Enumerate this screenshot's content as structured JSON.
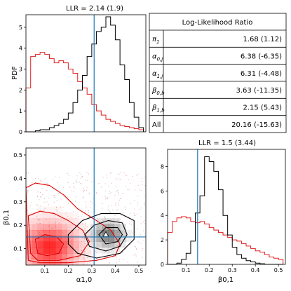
{
  "chart_data": [
    {
      "type": "histogram",
      "title": "LLR = 2.14 (1.9)",
      "ylabel": "PDF",
      "xlim": [
        0.02,
        0.53
      ],
      "ylim": [
        0,
        5.6
      ],
      "yticks": [
        0,
        1,
        2,
        3,
        4,
        5
      ],
      "vline": 0.31,
      "bins": [
        0.02,
        0.04,
        0.06,
        0.08,
        0.1,
        0.12,
        0.14,
        0.16,
        0.18,
        0.2,
        0.22,
        0.24,
        0.26,
        0.28,
        0.3,
        0.32,
        0.34,
        0.36,
        0.38,
        0.4,
        0.42,
        0.44,
        0.46,
        0.48,
        0.5,
        0.52
      ],
      "series": [
        {
          "color": "#e02020",
          "values": [
            2.1,
            3.6,
            3.7,
            3.8,
            3.7,
            3.5,
            3.3,
            3.4,
            3.3,
            3.0,
            2.8,
            2.4,
            2.1,
            1.8,
            1.3,
            1.0,
            0.8,
            0.6,
            0.5,
            0.4,
            0.3,
            0.25,
            0.2,
            0.15,
            0.1
          ]
        },
        {
          "color": "#000000",
          "values": [
            0.0,
            0.0,
            0.05,
            0.1,
            0.1,
            0.2,
            0.3,
            0.4,
            0.6,
            0.9,
            1.4,
            2.0,
            2.7,
            3.6,
            4.2,
            4.8,
            5.0,
            5.5,
            5.1,
            4.4,
            3.2,
            2.5,
            1.4,
            0.7,
            0.2
          ]
        }
      ]
    },
    {
      "type": "table",
      "header": "Log-Likelihood Ratio",
      "rows": [
        {
          "label": "π1",
          "value": "1.68 (1.12)"
        },
        {
          "label": "α0,j",
          "value": "6.38 (-6.35)"
        },
        {
          "label": "α1,j",
          "value": "6.31 (-4.48)"
        },
        {
          "label": "β0,b",
          "value": "3.63 (-11.35)"
        },
        {
          "label": "β1,b",
          "value": "2.15 (5.43)"
        },
        {
          "label": "All",
          "value": "20.16 (-15.63)"
        }
      ]
    },
    {
      "type": "heatmap",
      "xlabel": "α1,0",
      "ylabel": "β0,1",
      "xlim": [
        0.02,
        0.53
      ],
      "ylim": [
        0.03,
        0.53
      ],
      "xticks": [
        0.1,
        0.2,
        0.3,
        0.4,
        0.5
      ],
      "yticks": [
        0.1,
        0.2,
        0.3,
        0.4,
        0.5
      ],
      "vline": 0.31,
      "hline": 0.15,
      "red_contours": [
        {
          "level": "outer",
          "points": [
            [
              0.02,
              0.36
            ],
            [
              0.06,
              0.38
            ],
            [
              0.12,
              0.37
            ],
            [
              0.18,
              0.33
            ],
            [
              0.24,
              0.27
            ],
            [
              0.32,
              0.22
            ],
            [
              0.38,
              0.18
            ],
            [
              0.42,
              0.12
            ],
            [
              0.4,
              0.07
            ],
            [
              0.32,
              0.05
            ],
            [
              0.2,
              0.04
            ],
            [
              0.08,
              0.04
            ],
            [
              0.03,
              0.05
            ]
          ]
        },
        {
          "level": "mid",
          "points": [
            [
              0.03,
              0.24
            ],
            [
              0.08,
              0.26
            ],
            [
              0.14,
              0.25
            ],
            [
              0.2,
              0.22
            ],
            [
              0.26,
              0.18
            ],
            [
              0.29,
              0.13
            ],
            [
              0.25,
              0.07
            ],
            [
              0.16,
              0.05
            ],
            [
              0.07,
              0.05
            ],
            [
              0.04,
              0.08
            ]
          ]
        },
        {
          "level": "inner",
          "points": [
            [
              0.06,
              0.14
            ],
            [
              0.1,
              0.16
            ],
            [
              0.15,
              0.15
            ],
            [
              0.18,
              0.12
            ],
            [
              0.16,
              0.08
            ],
            [
              0.11,
              0.07
            ],
            [
              0.07,
              0.08
            ]
          ]
        }
      ],
      "black_contours": [
        {
          "level": "outer",
          "points": [
            [
              0.2,
              0.16
            ],
            [
              0.26,
              0.22
            ],
            [
              0.34,
              0.25
            ],
            [
              0.42,
              0.25
            ],
            [
              0.48,
              0.22
            ],
            [
              0.48,
              0.14
            ],
            [
              0.42,
              0.08
            ],
            [
              0.32,
              0.06
            ],
            [
              0.24,
              0.08
            ],
            [
              0.2,
              0.12
            ]
          ]
        },
        {
          "level": "mid",
          "points": [
            [
              0.27,
              0.16
            ],
            [
              0.31,
              0.2
            ],
            [
              0.37,
              0.22
            ],
            [
              0.43,
              0.21
            ],
            [
              0.45,
              0.16
            ],
            [
              0.42,
              0.11
            ],
            [
              0.36,
              0.09
            ],
            [
              0.29,
              0.11
            ]
          ]
        },
        {
          "level": "inner",
          "points": [
            [
              0.33,
              0.16
            ],
            [
              0.36,
              0.19
            ],
            [
              0.41,
              0.19
            ],
            [
              0.43,
              0.16
            ],
            [
              0.41,
              0.13
            ],
            [
              0.36,
              0.12
            ]
          ]
        }
      ],
      "marker": [
        0.36,
        0.16
      ]
    },
    {
      "type": "histogram",
      "title": "LLR = 1.5 (3.44)",
      "xlabel": "β0,1",
      "xlim": [
        0.02,
        0.53
      ],
      "ylim": [
        0,
        9.4
      ],
      "xticks": [
        0.1,
        0.2,
        0.3,
        0.4,
        0.5
      ],
      "yticks": [
        0,
        2,
        4,
        6,
        8
      ],
      "vline": 0.15,
      "bins": [
        0.02,
        0.04,
        0.06,
        0.08,
        0.1,
        0.12,
        0.14,
        0.16,
        0.18,
        0.2,
        0.22,
        0.24,
        0.26,
        0.28,
        0.3,
        0.32,
        0.34,
        0.36,
        0.38,
        0.4,
        0.42,
        0.44,
        0.46,
        0.48,
        0.5,
        0.52
      ],
      "series": [
        {
          "color": "#e02020",
          "values": [
            2.6,
            3.5,
            3.8,
            3.9,
            3.8,
            3.5,
            3.4,
            3.5,
            3.3,
            3.0,
            2.8,
            2.6,
            2.4,
            2.2,
            2.0,
            1.9,
            1.7,
            1.5,
            1.3,
            1.1,
            1.0,
            0.8,
            0.6,
            0.5,
            0.4
          ]
        },
        {
          "color": "#000000",
          "values": [
            0.0,
            0.0,
            0.1,
            0.4,
            0.9,
            1.9,
            4.2,
            5.6,
            8.8,
            8.4,
            7.6,
            6.1,
            4.0,
            2.4,
            1.4,
            0.8,
            0.5,
            0.3,
            0.2,
            0.1,
            0.05,
            0.0,
            0.0,
            0.0,
            0.0
          ]
        }
      ]
    }
  ]
}
